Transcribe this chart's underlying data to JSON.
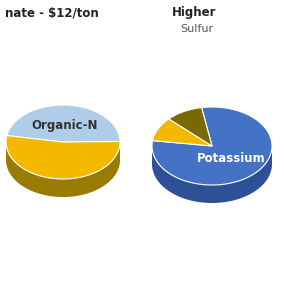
{
  "left_title": "nate - $12/ton",
  "right_title": "Higher",
  "right_subtitle": "Sulfur",
  "left_slices": [
    {
      "label": "Organic-N",
      "value": 47,
      "color": "#aecde8",
      "side_color": "#aecde8",
      "text_color": "#333333"
    },
    {
      "label": "",
      "value": 53,
      "color": "#f5b800",
      "side_color": "#9a7a00",
      "text_color": "#333333"
    }
  ],
  "right_slices": [
    {
      "label": "Potassium",
      "value": 80,
      "color": "#4472c4",
      "side_color": "#2e5096",
      "text_color": "#ffffff"
    },
    {
      "label": "",
      "value": 10,
      "color": "#f5b800",
      "side_color": "#9a7a00",
      "text_color": "#333333"
    },
    {
      "label": "",
      "value": 10,
      "color": "#7a6800",
      "side_color": "#5a4c00",
      "text_color": "#333333"
    }
  ],
  "background_color": "#ffffff",
  "title_fontsize": 8.5,
  "label_fontsize": 8.5
}
